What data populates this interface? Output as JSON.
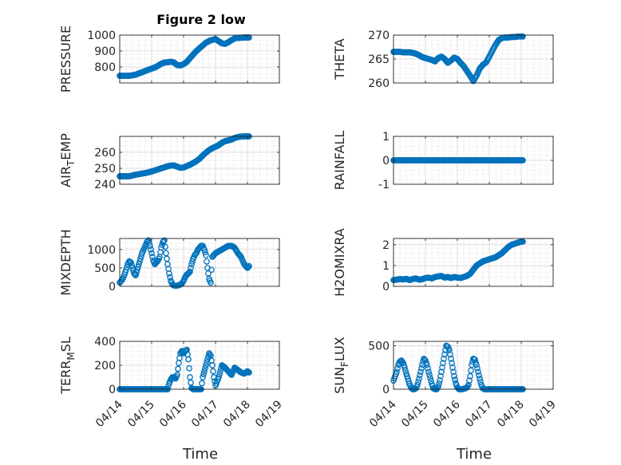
{
  "figure": {
    "title": "Figure 2 low",
    "xlabel": "Time",
    "marker_color": "#0072bd",
    "x_tick_labels": [
      "04/14",
      "04/15",
      "04/16",
      "04/17",
      "04/18",
      "04/19"
    ]
  },
  "chart_data": [
    {
      "type": "scatter",
      "name": "pressure",
      "ylabel": "PRESSURE",
      "ylabel_sub": "",
      "xlim": [
        0,
        5
      ],
      "ylim": [
        700,
        1000
      ],
      "yticks": [
        800,
        900,
        1000
      ],
      "x": [
        0.0,
        0.1,
        0.2,
        0.3,
        0.4,
        0.5,
        0.6,
        0.7,
        0.8,
        0.9,
        1.0,
        1.1,
        1.2,
        1.3,
        1.4,
        1.5,
        1.6,
        1.7,
        1.8,
        1.9,
        2.0,
        2.1,
        2.2,
        2.3,
        2.4,
        2.5,
        2.6,
        2.7,
        2.8,
        2.9,
        3.0,
        3.1,
        3.2,
        3.3,
        3.4,
        3.5,
        3.6,
        3.7,
        3.8,
        3.9,
        4.0,
        4.05
      ],
      "y": [
        745,
        745,
        745,
        745,
        748,
        752,
        760,
        767,
        775,
        783,
        790,
        797,
        808,
        820,
        828,
        830,
        833,
        828,
        812,
        810,
        818,
        832,
        855,
        878,
        900,
        918,
        935,
        952,
        963,
        970,
        975,
        962,
        948,
        945,
        955,
        968,
        980,
        982,
        983,
        985,
        985,
        985
      ]
    },
    {
      "type": "scatter",
      "name": "theta",
      "ylabel": "THETA",
      "ylabel_sub": "",
      "xlim": [
        0,
        5
      ],
      "ylim": [
        260,
        270
      ],
      "yticks": [
        260,
        265,
        270
      ],
      "x": [
        0.0,
        0.1,
        0.2,
        0.3,
        0.4,
        0.5,
        0.6,
        0.7,
        0.8,
        0.9,
        1.0,
        1.1,
        1.2,
        1.3,
        1.4,
        1.5,
        1.6,
        1.7,
        1.8,
        1.9,
        2.0,
        2.1,
        2.2,
        2.3,
        2.4,
        2.5,
        2.6,
        2.7,
        2.8,
        2.9,
        3.0,
        3.1,
        3.2,
        3.3,
        3.4,
        3.5,
        3.6,
        3.7,
        3.8,
        3.9,
        4.0,
        4.05
      ],
      "y": [
        266.5,
        266.5,
        266.5,
        266.4,
        266.4,
        266.4,
        266.3,
        266.1,
        265.8,
        265.4,
        265.2,
        265.0,
        264.8,
        264.5,
        265.2,
        265.5,
        265.0,
        264.2,
        264.7,
        265.3,
        265.0,
        264.2,
        263.5,
        262.5,
        261.5,
        260.4,
        261.5,
        263.0,
        263.8,
        264.3,
        265.5,
        266.8,
        268.0,
        269.0,
        269.4,
        269.5,
        269.5,
        269.6,
        269.6,
        269.7,
        269.7,
        269.7
      ]
    },
    {
      "type": "scatter",
      "name": "air_temp",
      "ylabel": "AIR",
      "ylabel_sub": "T",
      "ylabel_suffix": "EMP",
      "xlim": [
        0,
        5
      ],
      "ylim": [
        240,
        270
      ],
      "yticks": [
        240,
        250,
        260
      ],
      "x": [
        0.0,
        0.1,
        0.2,
        0.3,
        0.4,
        0.5,
        0.6,
        0.7,
        0.8,
        0.9,
        1.0,
        1.1,
        1.2,
        1.3,
        1.4,
        1.5,
        1.6,
        1.7,
        1.8,
        1.9,
        2.0,
        2.1,
        2.2,
        2.3,
        2.4,
        2.5,
        2.6,
        2.7,
        2.8,
        2.9,
        3.0,
        3.1,
        3.2,
        3.3,
        3.4,
        3.5,
        3.6,
        3.7,
        3.8,
        3.9,
        4.0,
        4.05
      ],
      "y": [
        245,
        245,
        245,
        245,
        245.5,
        246,
        246.3,
        246.7,
        247,
        247.5,
        248,
        248.7,
        249.3,
        250,
        250.6,
        251.3,
        251.7,
        251.8,
        251,
        250.3,
        250.5,
        251.4,
        252.2,
        253.3,
        254.5,
        256,
        258,
        259.8,
        261.4,
        262.6,
        263.5,
        264.5,
        266,
        267,
        267.5,
        268,
        269,
        269.6,
        269.9,
        270,
        270,
        270
      ]
    },
    {
      "type": "scatter",
      "name": "rainfall",
      "ylabel": "RAINFALL",
      "ylabel_sub": "",
      "xlim": [
        0,
        5
      ],
      "ylim": [
        -1,
        1
      ],
      "yticks": [
        -1,
        0,
        1
      ],
      "x": [
        0.0,
        0.1,
        0.2,
        0.3,
        0.4,
        0.5,
        0.6,
        0.7,
        0.8,
        0.9,
        1.0,
        1.1,
        1.2,
        1.3,
        1.4,
        1.5,
        1.6,
        1.7,
        1.8,
        1.9,
        2.0,
        2.1,
        2.2,
        2.3,
        2.4,
        2.5,
        2.6,
        2.7,
        2.8,
        2.9,
        3.0,
        3.1,
        3.2,
        3.3,
        3.4,
        3.5,
        3.6,
        3.7,
        3.8,
        3.9,
        4.0,
        4.05
      ],
      "y": [
        0,
        0,
        0,
        0,
        0,
        0,
        0,
        0,
        0,
        0,
        0,
        0,
        0,
        0,
        0,
        0,
        0,
        0,
        0,
        0,
        0,
        0,
        0,
        0,
        0,
        0,
        0,
        0,
        0,
        0,
        0,
        0,
        0,
        0,
        0,
        0,
        0,
        0,
        0,
        0,
        0,
        0
      ]
    },
    {
      "type": "scatter",
      "name": "mixdepth",
      "ylabel": "MIXDEPTH",
      "ylabel_sub": "",
      "xlim": [
        0,
        5
      ],
      "ylim": [
        0,
        1300
      ],
      "yticks": [
        0,
        500,
        1000
      ],
      "x": [
        0.0,
        0.05,
        0.1,
        0.15,
        0.2,
        0.25,
        0.3,
        0.35,
        0.4,
        0.45,
        0.5,
        0.55,
        0.6,
        0.65,
        0.7,
        0.75,
        0.8,
        0.85,
        0.9,
        0.95,
        1.0,
        1.05,
        1.1,
        1.15,
        1.2,
        1.25,
        1.3,
        1.35,
        1.4,
        1.45,
        1.5,
        1.55,
        1.6,
        1.65,
        1.7,
        1.75,
        1.8,
        1.85,
        1.9,
        1.95,
        2.0,
        2.05,
        2.1,
        2.15,
        2.2,
        2.25,
        2.3,
        2.35,
        2.4,
        2.45,
        2.5,
        2.55,
        2.6,
        2.65,
        2.7,
        2.75,
        2.8,
        2.85,
        2.9,
        2.95,
        3.0,
        3.1,
        3.2,
        3.3,
        3.4,
        3.5,
        3.6,
        3.7,
        3.8,
        3.9,
        4.0,
        4.05
      ],
      "y": [
        100,
        150,
        220,
        320,
        450,
        600,
        680,
        650,
        500,
        350,
        300,
        450,
        600,
        750,
        900,
        1000,
        1100,
        1200,
        1250,
        1100,
        900,
        700,
        600,
        650,
        700,
        800,
        1050,
        1200,
        1250,
        900,
        600,
        350,
        150,
        50,
        20,
        15,
        20,
        30,
        50,
        80,
        150,
        250,
        320,
        350,
        400,
        600,
        750,
        850,
        900,
        1000,
        1050,
        1100,
        1100,
        1000,
        850,
        500,
        200,
        100,
        800,
        850,
        900,
        950,
        1000,
        1050,
        1100,
        1100,
        1050,
        900,
        800,
        600,
        500,
        550
      ]
    },
    {
      "type": "scatter",
      "name": "h2omixra",
      "ylabel": "H2OMIXRA",
      "ylabel_sub": "",
      "xlim": [
        0,
        5
      ],
      "ylim": [
        0,
        2.3
      ],
      "yticks": [
        0,
        1,
        2
      ],
      "x": [
        0.0,
        0.1,
        0.2,
        0.3,
        0.4,
        0.5,
        0.6,
        0.7,
        0.8,
        0.9,
        1.0,
        1.1,
        1.2,
        1.3,
        1.4,
        1.5,
        1.6,
        1.7,
        1.8,
        1.9,
        2.0,
        2.1,
        2.2,
        2.3,
        2.4,
        2.5,
        2.6,
        2.7,
        2.8,
        2.9,
        3.0,
        3.1,
        3.2,
        3.3,
        3.4,
        3.5,
        3.6,
        3.7,
        3.8,
        3.9,
        4.0,
        4.05
      ],
      "y": [
        0.3,
        0.32,
        0.35,
        0.33,
        0.36,
        0.3,
        0.35,
        0.38,
        0.32,
        0.34,
        0.4,
        0.42,
        0.38,
        0.45,
        0.48,
        0.5,
        0.42,
        0.45,
        0.4,
        0.45,
        0.42,
        0.4,
        0.45,
        0.5,
        0.6,
        0.8,
        1.0,
        1.1,
        1.2,
        1.25,
        1.3,
        1.35,
        1.4,
        1.5,
        1.6,
        1.75,
        1.9,
        2.0,
        2.05,
        2.1,
        2.15,
        2.15
      ]
    },
    {
      "type": "scatter",
      "name": "terr_msl",
      "ylabel": "TERR",
      "ylabel_sub": "M",
      "ylabel_suffix": "SL",
      "xlim": [
        0,
        5
      ],
      "ylim": [
        0,
        400
      ],
      "yticks": [
        0,
        200,
        400
      ],
      "x": [
        0.0,
        0.1,
        0.2,
        0.3,
        0.4,
        0.5,
        0.6,
        0.7,
        0.8,
        0.9,
        1.0,
        1.1,
        1.2,
        1.3,
        1.4,
        1.5,
        1.55,
        1.6,
        1.65,
        1.7,
        1.75,
        1.8,
        1.85,
        1.9,
        1.95,
        2.0,
        2.05,
        2.1,
        2.15,
        2.2,
        2.25,
        2.3,
        2.35,
        2.4,
        2.45,
        2.5,
        2.55,
        2.6,
        2.65,
        2.7,
        2.75,
        2.8,
        2.85,
        2.9,
        2.95,
        3.0,
        3.1,
        3.2,
        3.3,
        3.4,
        3.5,
        3.6,
        3.7,
        3.8,
        3.9,
        4.0,
        4.05
      ],
      "y": [
        0,
        0,
        0,
        0,
        0,
        0,
        0,
        0,
        0,
        0,
        0,
        0,
        0,
        0,
        0,
        0,
        50,
        80,
        100,
        100,
        90,
        120,
        220,
        300,
        320,
        300,
        320,
        330,
        250,
        100,
        10,
        0,
        0,
        0,
        0,
        0,
        0,
        100,
        150,
        200,
        250,
        300,
        280,
        200,
        100,
        30,
        100,
        200,
        180,
        150,
        120,
        180,
        160,
        140,
        130,
        150,
        140
      ]
    },
    {
      "type": "scatter",
      "name": "sun_flux",
      "ylabel": "SUN",
      "ylabel_sub": "F",
      "ylabel_suffix": "LUX",
      "xlim": [
        0,
        5
      ],
      "ylim": [
        0,
        550
      ],
      "yticks": [
        0,
        500
      ],
      "x": [
        0.0,
        0.05,
        0.1,
        0.15,
        0.2,
        0.25,
        0.3,
        0.35,
        0.4,
        0.45,
        0.5,
        0.55,
        0.6,
        0.65,
        0.7,
        0.75,
        0.8,
        0.85,
        0.9,
        0.95,
        1.0,
        1.05,
        1.1,
        1.15,
        1.2,
        1.25,
        1.3,
        1.35,
        1.4,
        1.45,
        1.5,
        1.55,
        1.6,
        1.65,
        1.7,
        1.75,
        1.8,
        1.85,
        1.9,
        1.95,
        2.0,
        2.05,
        2.1,
        2.15,
        2.2,
        2.25,
        2.3,
        2.35,
        2.4,
        2.45,
        2.5,
        2.55,
        2.6,
        2.65,
        2.7,
        2.75,
        2.8,
        2.85,
        2.9,
        2.95,
        3.0,
        3.05,
        3.1,
        3.15,
        3.2,
        3.25,
        3.3,
        3.35,
        3.4,
        3.45,
        3.5,
        3.55,
        3.6,
        3.65,
        3.7,
        3.75,
        3.8,
        3.85,
        3.9,
        3.95,
        4.0,
        4.05
      ],
      "y": [
        100,
        150,
        200,
        280,
        320,
        330,
        300,
        250,
        180,
        120,
        60,
        20,
        0,
        0,
        10,
        50,
        120,
        200,
        280,
        350,
        330,
        280,
        200,
        130,
        60,
        10,
        0,
        0,
        30,
        100,
        200,
        300,
        400,
        500,
        490,
        450,
        350,
        250,
        150,
        70,
        20,
        0,
        0,
        0,
        5,
        10,
        20,
        50,
        150,
        280,
        350,
        340,
        280,
        200,
        120,
        50,
        10,
        0,
        0,
        0,
        0,
        0,
        0,
        0,
        0,
        0,
        0,
        0,
        0,
        0,
        0,
        0,
        0,
        0,
        0,
        0,
        0,
        0,
        0,
        0,
        0,
        0
      ]
    }
  ]
}
